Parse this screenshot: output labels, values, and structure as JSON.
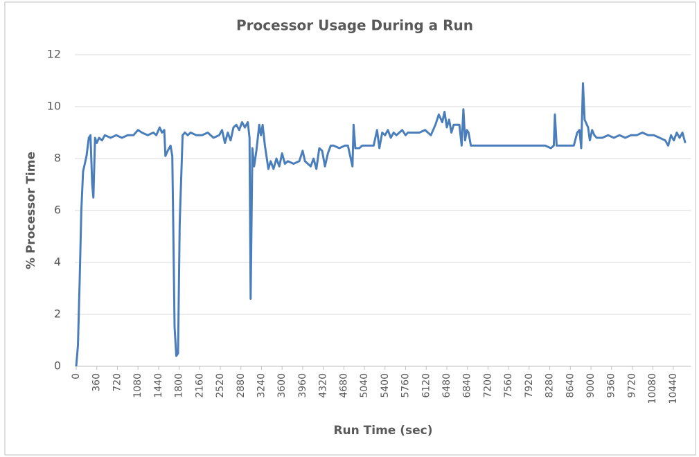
{
  "chart_data": {
    "type": "line",
    "title": "Processor Usage During a Run",
    "x_label": "Run Time (sec)",
    "y_label": "% Processor Time",
    "x": [
      0,
      30,
      60,
      90,
      120,
      180,
      220,
      250,
      280,
      300,
      330,
      360,
      400,
      450,
      500,
      600,
      700,
      800,
      900,
      1000,
      1080,
      1150,
      1250,
      1350,
      1400,
      1460,
      1500,
      1540,
      1560,
      1600,
      1650,
      1680,
      1700,
      1720,
      1750,
      1780,
      1810,
      1860,
      1900,
      1950,
      2000,
      2100,
      2200,
      2300,
      2400,
      2500,
      2550,
      2600,
      2650,
      2700,
      2750,
      2800,
      2850,
      2900,
      2950,
      3000,
      3030,
      3050,
      3080,
      3110,
      3150,
      3200,
      3230,
      3260,
      3300,
      3360,
      3400,
      3450,
      3500,
      3550,
      3600,
      3650,
      3700,
      3800,
      3900,
      3960,
      4000,
      4100,
      4150,
      4200,
      4250,
      4300,
      4350,
      4400,
      4450,
      4500,
      4600,
      4700,
      4750,
      4800,
      4830,
      4850,
      4880,
      4950,
      5000,
      5100,
      5200,
      5260,
      5300,
      5350,
      5400,
      5450,
      5500,
      5550,
      5600,
      5700,
      5760,
      5800,
      5900,
      6000,
      6100,
      6200,
      6280,
      6340,
      6400,
      6440,
      6480,
      6520,
      6560,
      6600,
      6650,
      6700,
      6740,
      6770,
      6800,
      6830,
      6860,
      6900,
      7000,
      7200,
      7400,
      7600,
      7800,
      8000,
      8200,
      8300,
      8350,
      8370,
      8400,
      8500,
      8600,
      8700,
      8760,
      8800,
      8830,
      8860,
      8890,
      8950,
      8980,
      9020,
      9060,
      9100,
      9200,
      9300,
      9400,
      9500,
      9600,
      9700,
      9800,
      9900,
      10000,
      10100,
      10200,
      10300,
      10350,
      10400,
      10450,
      10500,
      10550,
      10600,
      10650
    ],
    "series": [
      {
        "name": "% Processor Time",
        "color": "#4a7ebb",
        "values": [
          0,
          0.8,
          3.3,
          6,
          7.5,
          8.1,
          8.8,
          8.9,
          7,
          6.5,
          8.8,
          8.6,
          8.8,
          8.7,
          8.9,
          8.8,
          8.9,
          8.8,
          8.9,
          8.9,
          9.1,
          9.0,
          8.9,
          9.0,
          8.9,
          9.2,
          9.0,
          9.1,
          8.1,
          8.3,
          8.5,
          8.1,
          5,
          1.5,
          0.4,
          0.5,
          5.5,
          8.9,
          9.0,
          8.9,
          9.0,
          8.9,
          8.9,
          9.0,
          8.8,
          8.9,
          9.1,
          8.6,
          9.0,
          8.7,
          9.2,
          9.3,
          9.1,
          9.4,
          9.2,
          9.4,
          8.8,
          2.6,
          8.4,
          7.7,
          8.3,
          9.3,
          8.9,
          9.3,
          8.5,
          7.6,
          7.9,
          7.6,
          8.0,
          7.7,
          8.2,
          7.8,
          7.9,
          7.8,
          7.9,
          8.3,
          7.9,
          7.7,
          8.0,
          7.6,
          8.4,
          8.3,
          7.7,
          8.2,
          8.5,
          8.5,
          8.4,
          8.5,
          8.5,
          8.0,
          7.7,
          9.3,
          8.4,
          8.4,
          8.5,
          8.5,
          8.5,
          9.1,
          8.4,
          9.0,
          8.9,
          9.1,
          8.8,
          9.0,
          8.9,
          9.1,
          8.9,
          9.0,
          9.0,
          9.0,
          9.1,
          8.9,
          9.3,
          9.7,
          9.4,
          9.8,
          9.2,
          9.5,
          9.0,
          9.3,
          9.3,
          9.3,
          8.5,
          9.9,
          8.7,
          9.1,
          9.0,
          8.5,
          8.5,
          8.5,
          8.5,
          8.5,
          8.5,
          8.5,
          8.5,
          8.4,
          8.5,
          9.7,
          8.5,
          8.5,
          8.5,
          8.5,
          9.0,
          9.1,
          8.4,
          10.9,
          9.5,
          9.2,
          8.7,
          9.1,
          8.9,
          8.8,
          8.8,
          8.9,
          8.8,
          8.9,
          8.8,
          8.9,
          8.9,
          9.0,
          8.9,
          8.9,
          8.8,
          8.7,
          8.5,
          8.9,
          8.7,
          9.0,
          8.8,
          9.0,
          8.6
        ]
      }
    ],
    "xlim": [
      0,
      10750
    ],
    "xticks": [
      0,
      360,
      720,
      1080,
      1440,
      1800,
      2160,
      2520,
      2880,
      3240,
      3600,
      3960,
      4320,
      4680,
      5040,
      5400,
      5760,
      6120,
      6480,
      6840,
      7200,
      7560,
      7920,
      8280,
      8640,
      9000,
      9360,
      9720,
      10080,
      10440
    ],
    "ylim": [
      0,
      12
    ],
    "yticks": [
      0,
      2,
      4,
      6,
      8,
      10,
      12
    ],
    "grid": true
  }
}
